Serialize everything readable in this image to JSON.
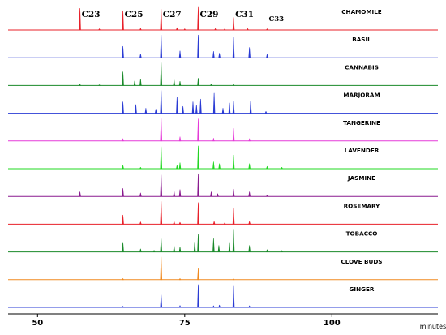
{
  "chart_data": {
    "type": "line",
    "title": "",
    "xlabel": "minutes",
    "ylabel": "",
    "xlim": [
      45,
      118
    ],
    "x_ticks": [
      {
        "value": 50,
        "label": "50"
      },
      {
        "value": 75,
        "label": "75"
      },
      {
        "value": 100,
        "label": "100"
      }
    ],
    "grid": false,
    "legend": "none",
    "peak_annotations": [
      {
        "label": "C23",
        "x": 57.2
      },
      {
        "label": "C25",
        "x": 64.5
      },
      {
        "label": "C27",
        "x": 71.0
      },
      {
        "label": "C29",
        "x": 77.3
      },
      {
        "label": "C31",
        "x": 83.3
      },
      {
        "label": "C33",
        "x": 89.0
      }
    ],
    "series": [
      {
        "name": "CHAMOMILE",
        "color": "#e8202a",
        "peaks": [
          [
            57.2,
            0.95
          ],
          [
            60.5,
            0.05
          ],
          [
            64.5,
            0.85
          ],
          [
            67.5,
            0.07
          ],
          [
            71.0,
            0.92
          ],
          [
            73.7,
            0.1
          ],
          [
            75.0,
            0.05
          ],
          [
            77.3,
            1.0
          ],
          [
            80.2,
            0.06
          ],
          [
            81.8,
            0.05
          ],
          [
            83.3,
            0.55
          ],
          [
            85.7,
            0.06
          ],
          [
            89.0,
            0.05
          ]
        ]
      },
      {
        "name": "BASIL",
        "color": "#2a3bd4",
        "peaks": [
          [
            64.5,
            0.5
          ],
          [
            67.5,
            0.17
          ],
          [
            71.0,
            1.0
          ],
          [
            74.2,
            0.3
          ],
          [
            77.3,
            1.0
          ],
          [
            79.9,
            0.28
          ],
          [
            80.9,
            0.2
          ],
          [
            83.3,
            0.9
          ],
          [
            86.0,
            0.45
          ],
          [
            89.0,
            0.15
          ]
        ]
      },
      {
        "name": "CANNABIS",
        "color": "#1a8a2a",
        "peaks": [
          [
            57.2,
            0.05
          ],
          [
            60.5,
            0.03
          ],
          [
            64.5,
            0.6
          ],
          [
            66.5,
            0.2
          ],
          [
            67.5,
            0.28
          ],
          [
            71.0,
            1.0
          ],
          [
            73.2,
            0.25
          ],
          [
            74.2,
            0.18
          ],
          [
            77.3,
            0.32
          ],
          [
            79.5,
            0.06
          ],
          [
            83.3,
            0.06
          ]
        ]
      },
      {
        "name": "MARJORAM",
        "color": "#2a3bd4",
        "peaks": [
          [
            64.5,
            0.5
          ],
          [
            66.7,
            0.38
          ],
          [
            68.4,
            0.22
          ],
          [
            70.1,
            0.18
          ],
          [
            71.0,
            1.0
          ],
          [
            73.7,
            0.72
          ],
          [
            74.7,
            0.3
          ],
          [
            76.4,
            0.5
          ],
          [
            77.0,
            0.36
          ],
          [
            77.7,
            0.62
          ],
          [
            80.0,
            0.88
          ],
          [
            81.5,
            0.22
          ],
          [
            82.6,
            0.45
          ],
          [
            83.3,
            0.52
          ],
          [
            86.2,
            0.55
          ],
          [
            88.8,
            0.08
          ]
        ]
      },
      {
        "name": "TANGERINE",
        "color": "#e63ad9",
        "peaks": [
          [
            64.5,
            0.1
          ],
          [
            71.0,
            1.0
          ],
          [
            74.2,
            0.18
          ],
          [
            77.3,
            0.97
          ],
          [
            79.9,
            0.12
          ],
          [
            83.3,
            0.55
          ],
          [
            86.0,
            0.1
          ]
        ]
      },
      {
        "name": "LAVENDER",
        "color": "#22d822",
        "peaks": [
          [
            64.5,
            0.15
          ],
          [
            67.5,
            0.06
          ],
          [
            71.0,
            0.97
          ],
          [
            73.7,
            0.15
          ],
          [
            74.2,
            0.26
          ],
          [
            77.3,
            1.0
          ],
          [
            79.9,
            0.3
          ],
          [
            80.9,
            0.22
          ],
          [
            83.3,
            0.6
          ],
          [
            86.0,
            0.22
          ],
          [
            89.0,
            0.1
          ],
          [
            91.5,
            0.06
          ]
        ]
      },
      {
        "name": "JASMINE",
        "color": "#8a1a8f",
        "peaks": [
          [
            57.2,
            0.2
          ],
          [
            64.5,
            0.35
          ],
          [
            67.5,
            0.15
          ],
          [
            71.0,
            0.95
          ],
          [
            73.2,
            0.22
          ],
          [
            74.2,
            0.3
          ],
          [
            77.3,
            1.0
          ],
          [
            79.5,
            0.2
          ],
          [
            80.6,
            0.12
          ],
          [
            83.3,
            0.32
          ],
          [
            86.0,
            0.2
          ],
          [
            89.0,
            0.05
          ]
        ]
      },
      {
        "name": "ROSEMARY",
        "color": "#e8202a",
        "peaks": [
          [
            64.5,
            0.4
          ],
          [
            67.5,
            0.1
          ],
          [
            71.0,
            1.0
          ],
          [
            73.2,
            0.12
          ],
          [
            74.2,
            0.08
          ],
          [
            77.3,
            0.95
          ],
          [
            80.0,
            0.12
          ],
          [
            81.8,
            0.06
          ],
          [
            83.3,
            0.72
          ],
          [
            86.0,
            0.12
          ]
        ]
      },
      {
        "name": "TOBACCO",
        "color": "#1a8a2a",
        "peaks": [
          [
            64.5,
            0.42
          ],
          [
            67.5,
            0.13
          ],
          [
            69.8,
            0.07
          ],
          [
            71.0,
            0.58
          ],
          [
            73.2,
            0.26
          ],
          [
            74.2,
            0.22
          ],
          [
            76.7,
            0.44
          ],
          [
            77.3,
            0.78
          ],
          [
            79.9,
            0.58
          ],
          [
            80.8,
            0.28
          ],
          [
            82.6,
            0.42
          ],
          [
            83.3,
            1.0
          ],
          [
            86.0,
            0.28
          ],
          [
            89.0,
            0.1
          ],
          [
            91.5,
            0.06
          ]
        ]
      },
      {
        "name": "CLOVE BUDS",
        "color": "#f08a20",
        "peaks": [
          [
            64.5,
            0.05
          ],
          [
            71.0,
            1.0
          ],
          [
            74.2,
            0.05
          ],
          [
            77.3,
            0.5
          ],
          [
            83.3,
            0.04
          ]
        ]
      },
      {
        "name": "GINGER",
        "color": "#2a3bd4",
        "peaks": [
          [
            64.5,
            0.05
          ],
          [
            71.0,
            0.55
          ],
          [
            74.2,
            0.08
          ],
          [
            77.3,
            1.0
          ],
          [
            79.9,
            0.07
          ],
          [
            80.9,
            0.1
          ],
          [
            83.3,
            0.97
          ],
          [
            86.0,
            0.07
          ]
        ]
      }
    ]
  }
}
